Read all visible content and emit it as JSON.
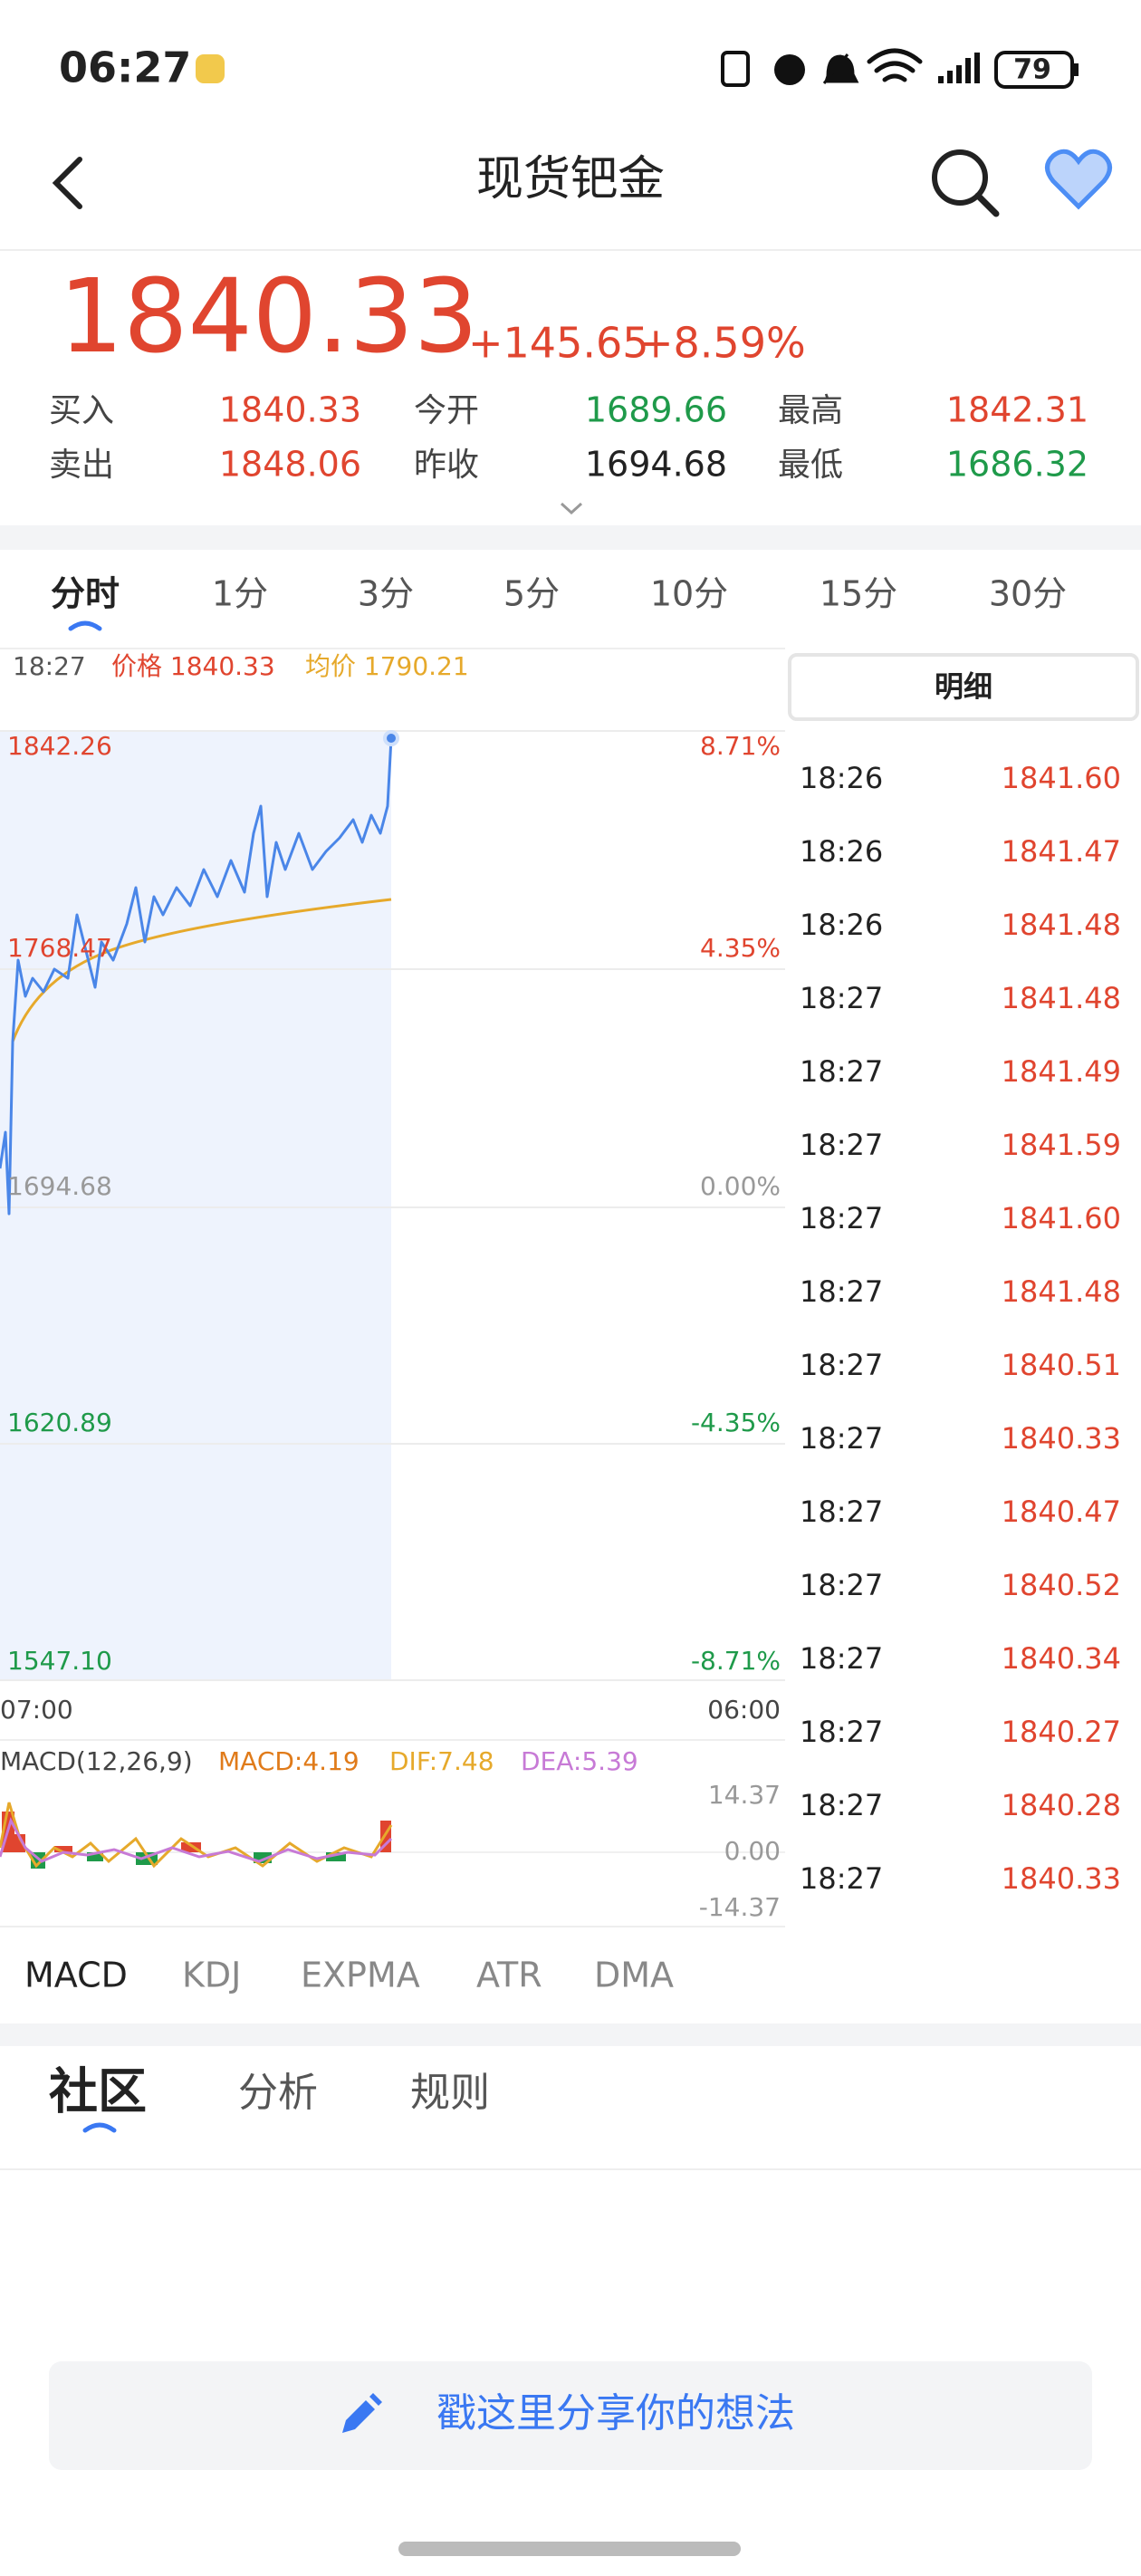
{
  "status_bar": {
    "time": "06:27",
    "battery": "79"
  },
  "header": {
    "title": "现货钯金"
  },
  "quote": {
    "price": "1840.33",
    "change": "+145.65",
    "change_pct": "+8.59%",
    "fields": [
      {
        "label": "买入",
        "value": "1840.33"
      },
      {
        "label": "今开",
        "value": "1689.66"
      },
      {
        "label": "最高",
        "value": "1842.31"
      },
      {
        "label": "卖出",
        "value": "1848.06"
      },
      {
        "label": "昨收",
        "value": "1694.68"
      },
      {
        "label": "最低",
        "value": "1686.32"
      }
    ]
  },
  "period_tabs": [
    "分时",
    "1分",
    "3分",
    "5分",
    "10分",
    "15分",
    "30分"
  ],
  "chart": {
    "info": {
      "time": "18:27",
      "price": "价格 1840.33",
      "avg": "均价 1790.21"
    },
    "left_axis": [
      "1842.26",
      "1768.47",
      "1694.68",
      "1620.89",
      "1547.10"
    ],
    "right_axis": [
      "8.71%",
      "4.35%",
      "0.00%",
      "-4.35%",
      "-8.71%"
    ],
    "time_start": "07:00",
    "time_end": "06:00"
  },
  "macd": {
    "title": "MACD(12,26,9)",
    "macd": "MACD:4.19",
    "dif": "DIF:7.48",
    "dea": "DEA:5.39",
    "axis": [
      "14.37",
      "0.00",
      "-14.37"
    ]
  },
  "indicator_tabs": [
    "MACD",
    "KDJ",
    "EXPMA",
    "ATR",
    "DMA"
  ],
  "detail": {
    "title": "明细",
    "rows": [
      [
        "18:26",
        "1841.60"
      ],
      [
        "18:26",
        "1841.47"
      ],
      [
        "18:26",
        "1841.48"
      ],
      [
        "18:27",
        "1841.48"
      ],
      [
        "18:27",
        "1841.49"
      ],
      [
        "18:27",
        "1841.59"
      ],
      [
        "18:27",
        "1841.60"
      ],
      [
        "18:27",
        "1841.48"
      ],
      [
        "18:27",
        "1840.51"
      ],
      [
        "18:27",
        "1840.33"
      ],
      [
        "18:27",
        "1840.47"
      ],
      [
        "18:27",
        "1840.52"
      ],
      [
        "18:27",
        "1840.34"
      ],
      [
        "18:27",
        "1840.27"
      ],
      [
        "18:27",
        "1840.28"
      ],
      [
        "18:27",
        "1840.33"
      ]
    ]
  },
  "community_tabs": [
    "社区",
    "分析",
    "规则"
  ],
  "input_placeholder": "戳这里分享你的想法"
}
